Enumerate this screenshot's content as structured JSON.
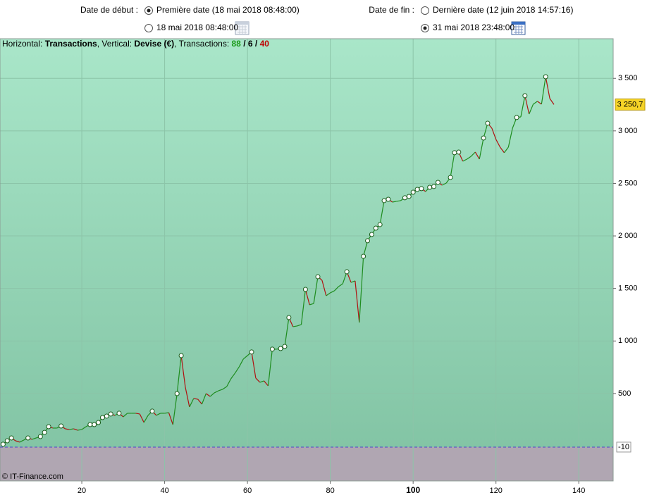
{
  "start": {
    "label": "Date de début :",
    "options": [
      {
        "text": "Première date (18 mai 2018 08:48:00)",
        "checked": true
      },
      {
        "text": "18 mai 2018 08:48:00",
        "checked": false
      }
    ]
  },
  "end": {
    "label": "Date de fin :",
    "options": [
      {
        "text": "Dernière date (12 juin 2018 14:57:16)",
        "checked": false
      },
      {
        "text": "31 mai 2018 23:48:00",
        "checked": true
      }
    ]
  },
  "info": {
    "parts": [
      {
        "text": "Horizontal: ",
        "bold": false,
        "color": "#000000"
      },
      {
        "text": "Transactions",
        "bold": true,
        "color": "#000000"
      },
      {
        "text": ", Vertical: ",
        "bold": false,
        "color": "#000000"
      },
      {
        "text": "Devise (€)",
        "bold": true,
        "color": "#000000"
      },
      {
        "text": ", Transactions: ",
        "bold": false,
        "color": "#000000"
      },
      {
        "text": "88",
        "bold": true,
        "color": "#1a9a1a"
      },
      {
        "text": " / ",
        "bold": true,
        "color": "#000000"
      },
      {
        "text": "6",
        "bold": true,
        "color": "#000000"
      },
      {
        "text": " / ",
        "bold": true,
        "color": "#000000"
      },
      {
        "text": "40",
        "bold": true,
        "color": "#c00000"
      }
    ]
  },
  "watermark": "© IT-Finance.com",
  "chart_data": {
    "type": "line",
    "x": [
      1,
      2,
      3,
      4,
      5,
      6,
      7,
      8,
      9,
      10,
      11,
      12,
      13,
      14,
      15,
      16,
      17,
      18,
      19,
      20,
      21,
      22,
      23,
      24,
      25,
      26,
      27,
      28,
      29,
      30,
      31,
      32,
      33,
      34,
      35,
      36,
      37,
      38,
      39,
      40,
      41,
      42,
      43,
      44,
      45,
      46,
      47,
      48,
      49,
      50,
      51,
      52,
      53,
      54,
      55,
      56,
      57,
      58,
      59,
      60,
      61,
      62,
      63,
      64,
      65,
      66,
      67,
      68,
      69,
      70,
      71,
      72,
      73,
      74,
      75,
      76,
      77,
      78,
      79,
      80,
      81,
      82,
      83,
      84,
      85,
      86,
      87,
      88,
      89,
      90,
      91,
      92,
      93,
      94,
      95,
      96,
      97,
      98,
      99,
      100,
      101,
      102,
      103,
      104,
      105,
      106,
      107,
      108,
      109,
      110,
      111,
      112,
      113,
      114,
      115,
      116,
      117,
      118,
      119,
      120,
      121,
      122,
      123,
      124,
      125,
      126,
      127,
      128,
      129,
      130,
      131,
      132,
      133,
      134
    ],
    "values": [
      17,
      50,
      77,
      50,
      37,
      57,
      77,
      64,
      77,
      90,
      130,
      184,
      171,
      171,
      191,
      164,
      157,
      164,
      150,
      157,
      184,
      204,
      204,
      224,
      271,
      285,
      305,
      292,
      312,
      278,
      312,
      312,
      312,
      305,
      224,
      292,
      332,
      292,
      312,
      312,
      318,
      204,
      499,
      861,
      560,
      372,
      452,
      446,
      399,
      499,
      472,
      506,
      526,
      540,
      566,
      640,
      694,
      754,
      828,
      861,
      895,
      647,
      607,
      620,
      573,
      922,
      922,
      928,
      948,
      1223,
      1136,
      1143,
      1156,
      1491,
      1344,
      1357,
      1612,
      1578,
      1431,
      1458,
      1478,
      1518,
      1545,
      1659,
      1558,
      1572,
      1176,
      1806,
      1954,
      2014,
      2074,
      2108,
      2336,
      2349,
      2322,
      2329,
      2336,
      2363,
      2376,
      2416,
      2443,
      2450,
      2423,
      2463,
      2470,
      2510,
      2483,
      2503,
      2557,
      2792,
      2798,
      2711,
      2731,
      2758,
      2798,
      2731,
      2932,
      3073,
      3026,
      2919,
      2845,
      2792,
      2845,
      3026,
      3127,
      3133,
      3335,
      3160,
      3254,
      3281,
      3254,
      3515,
      3308,
      3251
    ],
    "markers": [
      1,
      2,
      3,
      7,
      10,
      11,
      12,
      15,
      22,
      23,
      24,
      25,
      26,
      27,
      29,
      37,
      43,
      44,
      61,
      66,
      68,
      69,
      70,
      74,
      77,
      84,
      88,
      89,
      90,
      91,
      92,
      93,
      94,
      98,
      99,
      100,
      101,
      102,
      104,
      105,
      106,
      109,
      110,
      111,
      117,
      118,
      125,
      127,
      132
    ],
    "up_color": "#1e8c1e",
    "down_color": "#b01010",
    "xlim": [
      0.25,
      148.3
    ],
    "ylim": [
      -332,
      3877
    ],
    "xticks": [
      20,
      40,
      60,
      80,
      100,
      120,
      140
    ],
    "bold_xtick": 100,
    "yticks": [
      {
        "value": 500,
        "label": "500"
      },
      {
        "value": 1000,
        "label": "1 000"
      },
      {
        "value": 1500,
        "label": "1 500"
      },
      {
        "value": 2000,
        "label": "2 000"
      },
      {
        "value": 2500,
        "label": "2 500"
      },
      {
        "value": 3000,
        "label": "3 000"
      },
      {
        "value": 3500,
        "label": "3 500"
      }
    ],
    "grid": true,
    "last_value": {
      "value": 3250.7,
      "label": "3 250,7"
    },
    "baseline": {
      "value": -10,
      "label": "-10"
    }
  }
}
